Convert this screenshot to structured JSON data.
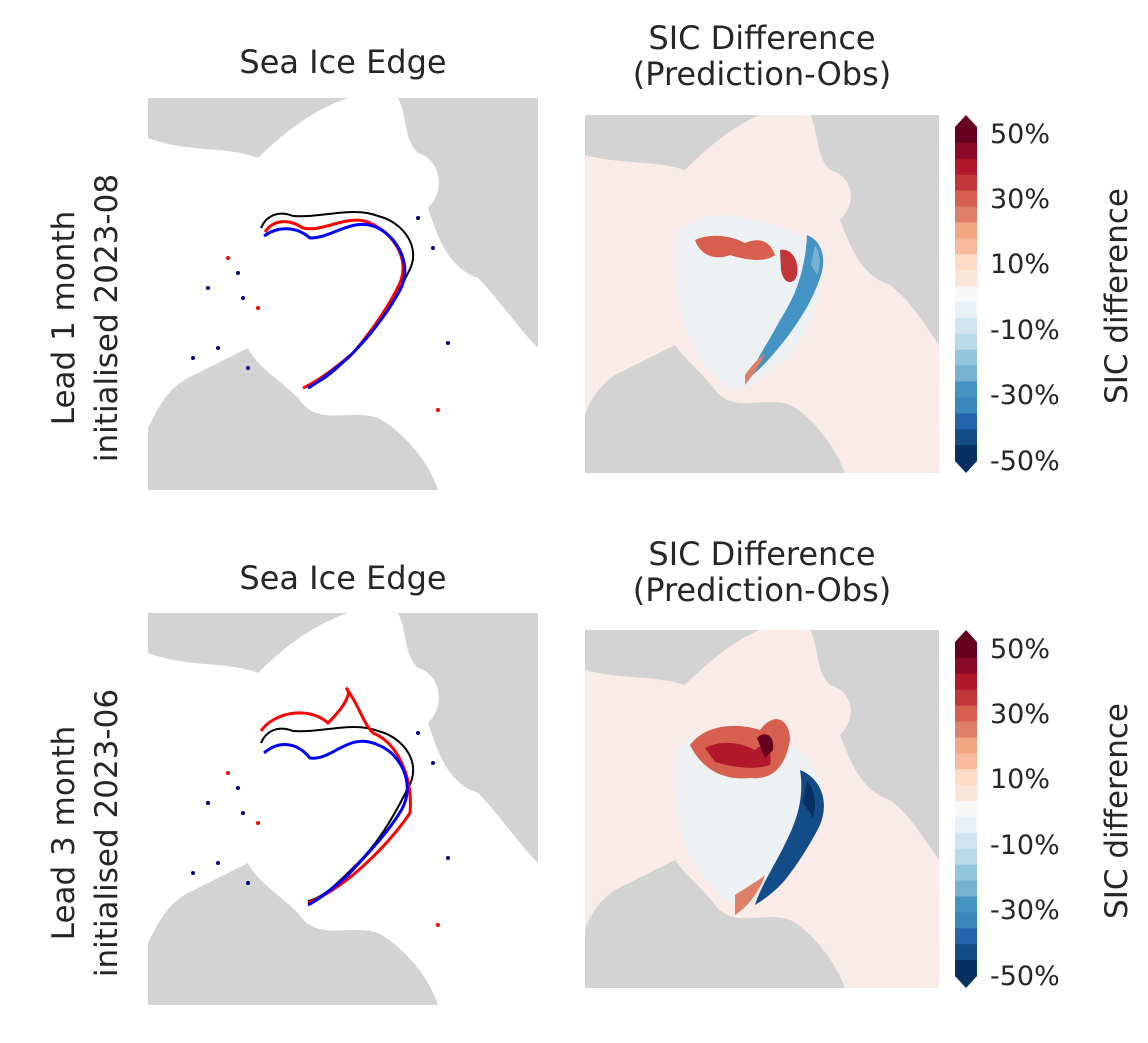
{
  "rows": [
    {
      "label_line1": "Lead 1 month",
      "label_line2": "initialised 2023-08",
      "left_title": "Sea Ice Edge",
      "right_title_line1": "SIC Difference",
      "right_title_line2": "(Prediction-Obs)"
    },
    {
      "label_line1": "Lead 3 month",
      "label_line2": "initialised 2023-06",
      "left_title": "Sea Ice Edge",
      "right_title_line1": "SIC Difference",
      "right_title_line2": "(Prediction-Obs)"
    }
  ],
  "colorbar": {
    "label": "SIC difference",
    "ticks": [
      "50%",
      "30%",
      "10%",
      "-10%",
      "-30%",
      "-50%"
    ],
    "min": -50,
    "max": 50,
    "colors": [
      "#053061",
      "#134c87",
      "#2166ac",
      "#3a87bd",
      "#4393c3",
      "#77b1d4",
      "#92c5de",
      "#bad9e9",
      "#d1e5f0",
      "#e8f1f6",
      "#f7f7f7",
      "#fbe5d8",
      "#fddbc7",
      "#f8b99c",
      "#f4a582",
      "#e07f67",
      "#d6604d",
      "#c13639",
      "#b2182b",
      "#8a0b25",
      "#67001f"
    ]
  },
  "colors": {
    "land": "#d3d3d3",
    "ocean": "#ffffff",
    "ocean_diff_bg": "#f9ebe7",
    "obs_edge": "#000000",
    "pred_edge_red": "#ff0000",
    "pred_edge_blue": "#0000ff"
  },
  "legend": null
}
